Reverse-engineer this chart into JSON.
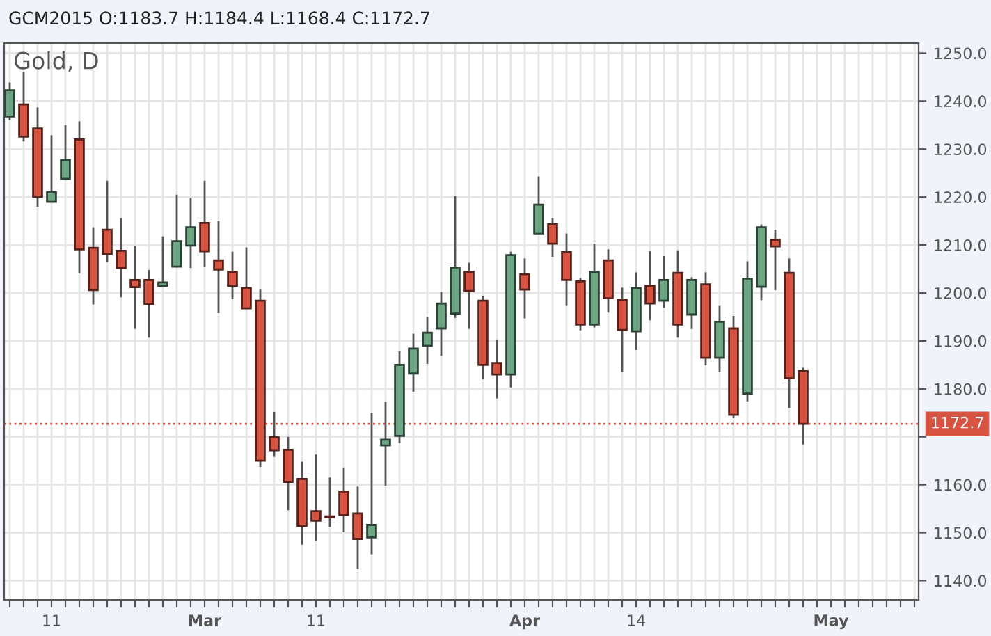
{
  "chart_data": {
    "type": "candlestick",
    "title": "GCM2015 O:1183.7 H:1184.4 L:1168.4 C:1172.7",
    "subtitle": "Gold, D",
    "categories": [
      null,
      null,
      null,
      "11",
      null,
      null,
      null,
      null,
      null,
      null,
      null,
      null,
      null,
      null,
      "Mar",
      null,
      null,
      null,
      null,
      null,
      null,
      null,
      "11",
      null,
      null,
      null,
      null,
      null,
      null,
      null,
      null,
      null,
      null,
      null,
      null,
      null,
      null,
      "Apr",
      null,
      null,
      null,
      null,
      null,
      null,
      null,
      "14",
      null,
      null,
      null,
      null,
      null,
      null,
      null,
      null,
      null,
      null,
      null,
      null,
      null,
      "May",
      null,
      null,
      null,
      null,
      null,
      null
    ],
    "ohlc": [
      [
        1236.8,
        1243.9,
        1236.0,
        1242.3
      ],
      [
        1239.3,
        1246.1,
        1231.6,
        1232.6
      ],
      [
        1234.3,
        1238.7,
        1218.0,
        1220.1
      ],
      [
        1219.0,
        1232.9,
        1219.0,
        1221.0
      ],
      [
        1223.8,
        1235.0,
        1223.6,
        1227.7
      ],
      [
        1232.0,
        1235.8,
        1204.1,
        1209.1
      ],
      [
        1209.4,
        1213.7,
        1197.6,
        1200.6
      ],
      [
        1213.2,
        1223.4,
        1206.4,
        1208.1
      ],
      [
        1208.8,
        1215.6,
        1199.1,
        1205.2
      ],
      [
        1202.7,
        1209.8,
        1192.5,
        1201.2
      ],
      [
        1202.7,
        1204.8,
        1190.7,
        1197.7
      ],
      [
        1201.5,
        1211.8,
        1201.4,
        1202.2
      ],
      [
        1205.5,
        1220.5,
        1205.5,
        1210.8
      ],
      [
        1209.9,
        1219.8,
        1205.2,
        1213.7
      ],
      [
        1214.6,
        1223.4,
        1205.4,
        1208.7
      ],
      [
        1206.8,
        1215.0,
        1195.8,
        1204.9
      ],
      [
        1204.4,
        1208.6,
        1198.7,
        1201.5
      ],
      [
        1201.0,
        1209.5,
        1196.8,
        1196.8
      ],
      [
        1198.4,
        1200.7,
        1163.7,
        1165.0
      ],
      [
        1169.9,
        1175.2,
        1165.8,
        1167.2
      ],
      [
        1167.3,
        1170.0,
        1154.7,
        1160.6
      ],
      [
        1161.2,
        1164.8,
        1147.5,
        1151.4
      ],
      [
        1154.5,
        1166.3,
        1148.3,
        1152.5
      ],
      [
        1153.4,
        1161.5,
        1151.2,
        1153.2
      ],
      [
        1158.6,
        1163.6,
        1150.1,
        1153.7
      ],
      [
        1154.0,
        1159.6,
        1142.4,
        1148.7
      ],
      [
        1149.0,
        1175.0,
        1145.5,
        1151.6
      ],
      [
        1168.2,
        1177.3,
        1159.8,
        1169.4
      ],
      [
        1170.2,
        1187.8,
        1168.7,
        1185.0
      ],
      [
        1183.2,
        1191.5,
        1179.4,
        1188.4
      ],
      [
        1189.0,
        1195.0,
        1185.2,
        1191.7
      ],
      [
        1192.6,
        1200.2,
        1186.9,
        1197.8
      ],
      [
        1195.7,
        1220.2,
        1194.8,
        1205.3
      ],
      [
        1204.4,
        1206.3,
        1192.5,
        1200.4
      ],
      [
        1198.4,
        1199.4,
        1182.0,
        1185.0
      ],
      [
        1185.4,
        1190.3,
        1178.0,
        1183.0
      ],
      [
        1183.0,
        1208.6,
        1180.3,
        1207.9
      ],
      [
        1203.9,
        1207.2,
        1194.7,
        1200.7
      ],
      [
        1212.3,
        1224.3,
        1212.3,
        1218.4
      ],
      [
        1214.3,
        1215.6,
        1207.5,
        1210.3
      ],
      [
        1208.5,
        1212.4,
        1197.3,
        1202.7
      ],
      [
        1202.4,
        1203.1,
        1192.2,
        1193.4
      ],
      [
        1193.4,
        1210.3,
        1192.8,
        1204.4
      ],
      [
        1206.8,
        1209.1,
        1195.9,
        1198.9
      ],
      [
        1198.6,
        1201.1,
        1183.5,
        1192.3
      ],
      [
        1192.0,
        1204.3,
        1188.1,
        1201.0
      ],
      [
        1201.5,
        1208.7,
        1194.3,
        1197.8
      ],
      [
        1198.4,
        1207.7,
        1196.9,
        1202.7
      ],
      [
        1204.2,
        1208.9,
        1190.7,
        1193.4
      ],
      [
        1195.5,
        1203.3,
        1192.5,
        1202.7
      ],
      [
        1201.8,
        1204.3,
        1184.9,
        1186.5
      ],
      [
        1186.5,
        1197.3,
        1183.5,
        1194.0
      ],
      [
        1192.6,
        1195.2,
        1173.9,
        1174.6
      ],
      [
        1179.0,
        1206.6,
        1177.4,
        1203.0
      ],
      [
        1201.3,
        1214.3,
        1198.5,
        1213.7
      ],
      [
        1211.1,
        1213.2,
        1200.6,
        1209.7
      ],
      [
        1204.2,
        1207.2,
        1176.0,
        1182.2
      ],
      [
        1183.7,
        1184.4,
        1168.4,
        1172.7
      ],
      null,
      null,
      null,
      null,
      null,
      null,
      null,
      null
    ],
    "colors": [
      "#6ba583",
      "#d75442",
      "#d75442",
      "#6ba583",
      "#6ba583",
      "#d75442",
      "#d75442",
      "#d75442",
      "#d75442",
      "#d75442",
      "#d75442",
      "#6ba583",
      "#6ba583",
      "#6ba583",
      "#d75442",
      "#d75442",
      "#d75442",
      "#d75442",
      "#d75442",
      "#d75442",
      "#d75442",
      "#d75442",
      "#d75442",
      "#d75442",
      "#d75442",
      "#d75442",
      "#6ba583",
      "#6ba583",
      "#6ba583",
      "#6ba583",
      "#6ba583",
      "#6ba583",
      "#6ba583",
      "#d75442",
      "#d75442",
      "#d75442",
      "#6ba583",
      "#d75442",
      "#6ba583",
      "#d75442",
      "#d75442",
      "#d75442",
      "#6ba583",
      "#d75442",
      "#d75442",
      "#6ba583",
      "#d75442",
      "#6ba583",
      "#d75442",
      "#6ba583",
      "#d75442",
      "#6ba583",
      "#d75442",
      "#6ba583",
      "#6ba583",
      "#d75442",
      "#d75442",
      "#d75442",
      null,
      null,
      null,
      null,
      null,
      null,
      null,
      null
    ],
    "ylim": [
      1136.0,
      1252.1
    ],
    "yticks": [
      {
        "value": 1140,
        "label": "1140.0"
      },
      {
        "value": 1150,
        "label": "1150.0"
      },
      {
        "value": 1160,
        "label": "1160.0"
      },
      {
        "value": 1170,
        "label": null
      },
      {
        "value": 1180,
        "label": "1180.0"
      },
      {
        "value": 1190,
        "label": "1190.0"
      },
      {
        "value": 1200,
        "label": "1200.0"
      },
      {
        "value": 1210,
        "label": "1210.0"
      },
      {
        "value": 1220,
        "label": "1220.0"
      },
      {
        "value": 1230,
        "label": "1230.0"
      },
      {
        "value": 1240,
        "label": "1240.0"
      },
      {
        "value": 1250,
        "label": "1250.0"
      }
    ],
    "ref_lines": [
      {
        "axis": "y",
        "value": 1172.7,
        "label": "1172.7",
        "color": "#d75442",
        "line_style": "dotted"
      }
    ],
    "grid": true
  }
}
